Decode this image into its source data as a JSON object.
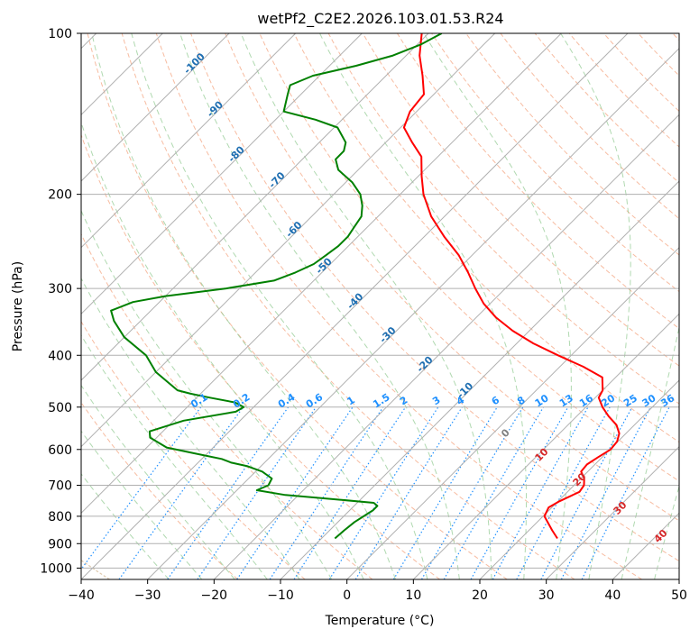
{
  "chart_data": {
    "type": "line",
    "title": "wetPf2_C2E2.2026.103.01.53.R24",
    "xlabel": "Temperature (°C)",
    "ylabel": "Pressure (hPa)",
    "xlim": [
      -40,
      50
    ],
    "ylim": [
      1050,
      100
    ],
    "y_scale": "log",
    "skew": true,
    "x_ticks": [
      -40,
      -30,
      -20,
      -10,
      0,
      10,
      20,
      30,
      40,
      50
    ],
    "y_ticks": [
      100,
      200,
      300,
      400,
      500,
      600,
      700,
      800,
      900,
      1000
    ],
    "grid": true,
    "colors": {
      "temperature": "#ff0000",
      "dewpoint": "#008000",
      "grid": "#b0b0b0",
      "dry_adiabats": "#f4a582",
      "moist_adiabats": "#8fc98f",
      "mixing_ratio": "#1e90ff",
      "theta_e": "#d2b48c"
    },
    "series": [
      {
        "key": "temperature",
        "p": [
          880,
          850,
          800,
          770,
          750,
          720,
          700,
          680,
          660,
          640,
          620,
          600,
          580,
          560,
          540,
          520,
          500,
          480,
          465,
          440,
          420,
          400,
          380,
          360,
          340,
          320,
          300,
          280,
          260,
          240,
          220,
          200,
          185,
          170,
          160,
          150,
          140,
          130,
          120,
          110,
          100
        ],
        "t": [
          25.5,
          23.5,
          20.2,
          19.5,
          20.2,
          21.8,
          21.5,
          20.5,
          19.0,
          18.8,
          19.4,
          20.1,
          19.9,
          19.0,
          17.3,
          14.8,
          12.5,
          10.5,
          10.0,
          8.0,
          3.5,
          -2.0,
          -7.5,
          -12.5,
          -17.0,
          -21.0,
          -24.5,
          -28.0,
          -32.0,
          -37.0,
          -42.0,
          -46.5,
          -49.5,
          -52.5,
          -56.0,
          -59.5,
          -61.0,
          -61.5,
          -64.5,
          -68.0,
          -71.0
        ]
      },
      {
        "key": "dewpoint",
        "p": [
          880,
          850,
          820,
          800,
          780,
          765,
          755,
          745,
          730,
          715,
          700,
          680,
          660,
          645,
          635,
          625,
          610,
          595,
          570,
          555,
          530,
          510,
          500,
          490,
          480,
          472,
          465,
          430,
          400,
          370,
          345,
          330,
          318,
          310,
          300,
          290,
          280,
          270,
          260,
          250,
          240,
          230,
          220,
          210,
          200,
          190,
          180,
          172,
          166,
          160,
          150,
          145,
          140,
          130,
          125,
          120,
          115,
          110,
          105,
          100
        ],
        "t": [
          -8.0,
          -7.8,
          -7.5,
          -7.0,
          -6.5,
          -6.5,
          -7.5,
          -13.0,
          -22.0,
          -27.0,
          -26.0,
          -26.5,
          -29.0,
          -32.0,
          -35.0,
          -37.0,
          -42.0,
          -47.0,
          -51.0,
          -52.0,
          -48.5,
          -42.0,
          -41.5,
          -43.5,
          -48.0,
          -51.5,
          -54.0,
          -60.0,
          -64.0,
          -70.0,
          -74.0,
          -76.0,
          -74.0,
          -70.0,
          -62.0,
          -56.0,
          -54.0,
          -52.5,
          -52.0,
          -51.5,
          -51.5,
          -52.0,
          -52.5,
          -54.0,
          -56.0,
          -59.0,
          -63.0,
          -65.0,
          -65.0,
          -66.0,
          -69.5,
          -74.0,
          -80.0,
          -82.0,
          -83.0,
          -81.0,
          -76.0,
          -72.0,
          -69.5,
          -68.0
        ]
      }
    ],
    "dry_adiabat_labels": [
      "-100",
      "-90",
      "-80",
      "-70",
      "-60",
      "-50",
      "-40",
      "-30",
      "-20",
      "-10"
    ],
    "moist_adiabat_labels": [
      "0",
      "10",
      "20",
      "30",
      "40"
    ],
    "mixing_ratio_labels": [
      "0.1",
      "0.2",
      "0.4",
      "0.6",
      "1",
      "1.5",
      "2",
      "3",
      "4",
      "6",
      "8",
      "10",
      "13",
      "16",
      "20",
      "25",
      "30",
      "36"
    ]
  }
}
